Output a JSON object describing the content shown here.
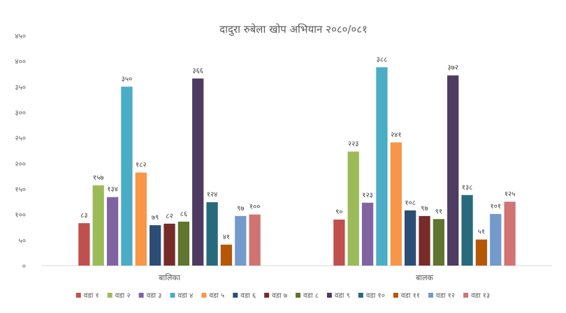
{
  "chart_data": {
    "type": "bar",
    "title": "दादुरा रुबेला खोप अभियान २०८०/०८१",
    "xlabel": "",
    "ylabel": "",
    "ylim": [
      0,
      450
    ],
    "yticks": [
      "०",
      "५०",
      "१००",
      "१५०",
      "२००",
      "२५०",
      "३००",
      "३५०",
      "४००",
      "४५०"
    ],
    "grid": false,
    "legend_position": "bottom",
    "categories": [
      "बालिका",
      "बालक"
    ],
    "series": [
      {
        "name": "वडा १",
        "color": "#c0504d",
        "values": [
          83,
          90
        ],
        "labels": [
          "८३",
          "९०"
        ]
      },
      {
        "name": "वडा २",
        "color": "#9bbb59",
        "values": [
          157,
          223
        ],
        "labels": [
          "१५७",
          "२२३"
        ]
      },
      {
        "name": "वडा ३",
        "color": "#8064a2",
        "values": [
          134,
          123
        ],
        "labels": [
          "१३४",
          "१२३"
        ]
      },
      {
        "name": "वडा ४",
        "color": "#4bacc6",
        "values": [
          350,
          388
        ],
        "labels": [
          "३५०",
          "३८८"
        ]
      },
      {
        "name": "वडा ५",
        "color": "#f79646",
        "values": [
          182,
          241
        ],
        "labels": [
          "१८२",
          "२४१"
        ]
      },
      {
        "name": "वडा ६",
        "color": "#2c4d75",
        "values": [
          79,
          108
        ],
        "labels": [
          "७९",
          "१०८"
        ]
      },
      {
        "name": "वडा ७",
        "color": "#772c2a",
        "values": [
          82,
          97
        ],
        "labels": [
          "८२",
          "९७"
        ]
      },
      {
        "name": "वडा ८",
        "color": "#5f7530",
        "values": [
          86,
          91
        ],
        "labels": [
          "८६",
          "९१"
        ]
      },
      {
        "name": "वडा ९",
        "color": "#4d3b62",
        "values": [
          366,
          372
        ],
        "labels": [
          "३६६",
          "३७२"
        ]
      },
      {
        "name": "वडा १०",
        "color": "#276a7c",
        "values": [
          124,
          138
        ],
        "labels": [
          "१२४",
          "१३८"
        ]
      },
      {
        "name": "वडा ११",
        "color": "#b65708",
        "values": [
          41,
          51
        ],
        "labels": [
          "४१",
          "५१"
        ]
      },
      {
        "name": "वडा १२",
        "color": "#729aca",
        "values": [
          97,
          101
        ],
        "labels": [
          "९७",
          "१०१"
        ]
      },
      {
        "name": "वडा १३",
        "color": "#d07473",
        "values": [
          100,
          125
        ],
        "labels": [
          "१००",
          "१२५"
        ]
      }
    ]
  }
}
